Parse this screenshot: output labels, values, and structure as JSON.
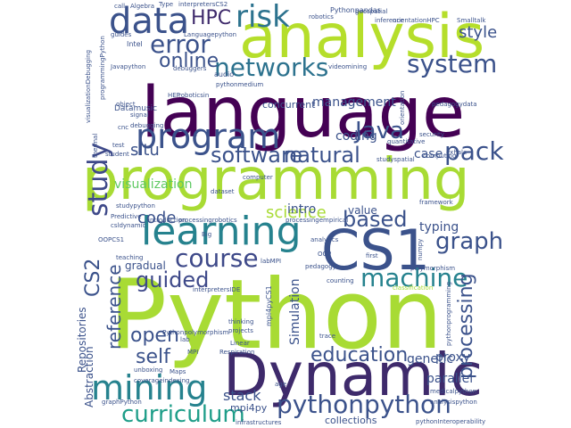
{
  "palette": {
    "dark_purple": "#440154",
    "indigo": "#3b528b",
    "teal": "#21918c",
    "green": "#5ec962",
    "lime": "#a8db34",
    "yellow": "#d8e219"
  },
  "words": [
    {
      "text": "language",
      "color": "#440154",
      "vertical": false
    },
    {
      "text": "programming",
      "color": "#a8db34",
      "vertical": false
    },
    {
      "text": "Python",
      "color": "#a8db34",
      "vertical": false
    },
    {
      "text": "analysis",
      "color": "#b5de2b",
      "vertical": false
    },
    {
      "text": "Dynamic",
      "color": "#3e2a6b",
      "vertical": false
    },
    {
      "text": "CS1",
      "color": "#3b528b",
      "vertical": false
    },
    {
      "text": "learning",
      "color": "#26828e",
      "vertical": false
    },
    {
      "text": "program",
      "color": "#3b528b",
      "vertical": false
    },
    {
      "text": "data",
      "color": "#3b528b",
      "vertical": false
    },
    {
      "text": "mining",
      "color": "#26828e",
      "vertical": false
    },
    {
      "text": "study",
      "color": "#3e4989",
      "vertical": true
    },
    {
      "text": "risk",
      "color": "#2c728e",
      "vertical": false
    },
    {
      "text": "error",
      "color": "#3b528b",
      "vertical": false
    },
    {
      "text": "networks",
      "color": "#2c728e",
      "vertical": false
    },
    {
      "text": "system",
      "color": "#3b528b",
      "vertical": false
    },
    {
      "text": "pythonpython",
      "color": "#3b528b",
      "vertical": false
    },
    {
      "text": "curriculum",
      "color": "#1f9e89",
      "vertical": false
    },
    {
      "text": "machine",
      "color": "#26828e",
      "vertical": false
    },
    {
      "text": "course",
      "color": "#3e4989",
      "vertical": false
    },
    {
      "text": "based",
      "color": "#3b528b",
      "vertical": false
    },
    {
      "text": "software",
      "color": "#3b528b",
      "vertical": false
    },
    {
      "text": "natural",
      "color": "#3b528b",
      "vertical": false
    },
    {
      "text": "Java",
      "color": "#3b528b",
      "vertical": false
    },
    {
      "text": "pack",
      "color": "#3b528b",
      "vertical": false
    },
    {
      "text": "graph",
      "color": "#3b528b",
      "vertical": false
    },
    {
      "text": "guided",
      "color": "#3e4989",
      "vertical": false
    },
    {
      "text": "online",
      "color": "#3b528b",
      "vertical": false
    },
    {
      "text": "HPC",
      "color": "#3e2a6b",
      "vertical": false
    },
    {
      "text": "education",
      "color": "#3b528b",
      "vertical": false
    },
    {
      "text": "open",
      "color": "#3b528b",
      "vertical": false
    },
    {
      "text": "self",
      "color": "#3b528b",
      "vertical": false
    },
    {
      "text": "style",
      "color": "#3b528b",
      "vertical": false
    },
    {
      "text": "code",
      "color": "#3b528b",
      "vertical": false
    },
    {
      "text": "science",
      "color": "#a8db34",
      "vertical": false
    },
    {
      "text": "processing",
      "color": "#3b528b",
      "vertical": true
    },
    {
      "text": "reference",
      "color": "#3b528b",
      "vertical": true
    },
    {
      "text": "CS2",
      "color": "#3b528b",
      "vertical": true
    },
    {
      "text": "stack",
      "color": "#3b528b",
      "vertical": false
    },
    {
      "text": "situ",
      "color": "#3b528b",
      "vertical": false
    },
    {
      "text": "visualization",
      "color": "#5ec962",
      "vertical": false
    },
    {
      "text": "management",
      "color": "#3b528b",
      "vertical": false
    },
    {
      "text": "coding",
      "color": "#3b528b",
      "vertical": false
    },
    {
      "text": "case",
      "color": "#3b528b",
      "vertical": false
    },
    {
      "text": "intro",
      "color": "#3b528b",
      "vertical": false
    },
    {
      "text": "value",
      "color": "#3b528b",
      "vertical": false
    },
    {
      "text": "typing",
      "color": "#3b528b",
      "vertical": false
    },
    {
      "text": "proxy",
      "color": "#3b528b",
      "vertical": false
    },
    {
      "text": "genetic",
      "color": "#3b528b",
      "vertical": false
    },
    {
      "text": "parallel",
      "color": "#3b528b",
      "vertical": false
    },
    {
      "text": "gradual",
      "color": "#3b528b",
      "vertical": false
    },
    {
      "text": "Simulation",
      "color": "#3b528b",
      "vertical": true
    },
    {
      "text": "Repositories",
      "color": "#3b528b",
      "vertical": true
    },
    {
      "text": "Abstraction",
      "color": "#3b528b",
      "vertical": true
    },
    {
      "text": "collections",
      "color": "#3b528b",
      "vertical": false
    },
    {
      "text": "concurrent",
      "color": "#3b528b",
      "vertical": false
    },
    {
      "text": "mpi4py",
      "color": "#3b528b",
      "vertical": false
    },
    {
      "text": "mpi4pyCS1",
      "color": "#3b528b",
      "vertical": true
    },
    {
      "text": "Languagepython",
      "color": "#3b528b",
      "vertical": false
    },
    {
      "text": "Datamusic",
      "color": "#3b528b",
      "vertical": false
    },
    {
      "text": "debugging",
      "color": "#3b528b",
      "vertical": false
    },
    {
      "text": "audio",
      "color": "#3b528b",
      "vertical": false
    },
    {
      "text": "Intel",
      "color": "#3b528b",
      "vertical": false
    },
    {
      "text": "Javapython",
      "color": "#3b528b",
      "vertical": false
    },
    {
      "text": "debuggers",
      "color": "#3b528b",
      "vertical": false
    },
    {
      "text": "pythonmedium",
      "color": "#3b528b",
      "vertical": false
    },
    {
      "text": "robotics",
      "color": "#3b528b",
      "vertical": false
    },
    {
      "text": "Pythonpandas",
      "color": "#3b528b",
      "vertical": false
    },
    {
      "text": "Smalltalk",
      "color": "#3b528b",
      "vertical": false
    },
    {
      "text": "interpretersCS2",
      "color": "#3b528b",
      "vertical": false
    },
    {
      "text": "Algebra",
      "color": "#3b528b",
      "vertical": false
    },
    {
      "text": "Type",
      "color": "#3b528b",
      "vertical": false
    },
    {
      "text": "call",
      "color": "#3b528b",
      "vertical": false
    },
    {
      "text": "object",
      "color": "#3b528b",
      "vertical": false
    },
    {
      "text": "signal",
      "color": "#3b528b",
      "vertical": false
    },
    {
      "text": "pedagogydata",
      "color": "#3b528b",
      "vertical": false
    },
    {
      "text": "videomining",
      "color": "#3b528b",
      "vertical": false
    },
    {
      "text": "cnc",
      "color": "#3b528b",
      "vertical": false
    },
    {
      "text": "test",
      "color": "#3b528b",
      "vertical": false
    },
    {
      "text": "security",
      "color": "#3b528b",
      "vertical": false
    },
    {
      "text": "quantitative",
      "color": "#3b528b",
      "vertical": false
    },
    {
      "text": "computing",
      "color": "#3b528b",
      "vertical": false
    },
    {
      "text": "studyspatial",
      "color": "#3b528b",
      "vertical": false
    },
    {
      "text": "computer",
      "color": "#3b528b",
      "vertical": false
    },
    {
      "text": "dataset",
      "color": "#3b528b",
      "vertical": false
    },
    {
      "text": "Predictive",
      "color": "#3b528b",
      "vertical": false
    },
    {
      "text": "csldynamic",
      "color": "#3b528b",
      "vertical": false
    },
    {
      "text": "OOPCS1",
      "color": "#3b528b",
      "vertical": false
    },
    {
      "text": "introduction",
      "color": "#3b528b",
      "vertical": false
    },
    {
      "text": "processingrobotics",
      "color": "#3b528b",
      "vertical": false
    },
    {
      "text": "processingempirical",
      "color": "#3b528b",
      "vertical": false
    },
    {
      "text": "analytics",
      "color": "#3b528b",
      "vertical": false
    },
    {
      "text": "Big",
      "color": "#3b528b",
      "vertical": false
    },
    {
      "text": "teaching",
      "color": "#3b528b",
      "vertical": false
    },
    {
      "text": "labMPI",
      "color": "#3b528b",
      "vertical": false
    },
    {
      "text": "pedagogy",
      "color": "#3b528b",
      "vertical": false
    },
    {
      "text": "counting",
      "color": "#3b528b",
      "vertical": false
    },
    {
      "text": "first",
      "color": "#3b528b",
      "vertical": false
    },
    {
      "text": "interpretersIDE",
      "color": "#3b528b",
      "vertical": false
    },
    {
      "text": "polymorphism",
      "color": "#3b528b",
      "vertical": false
    },
    {
      "text": "thinking",
      "color": "#3b528b",
      "vertical": false
    },
    {
      "text": "projects",
      "color": "#3b528b",
      "vertical": false
    },
    {
      "text": "Pythonpolymorphism",
      "color": "#3b528b",
      "vertical": false
    },
    {
      "text": "Linear",
      "color": "#3b528b",
      "vertical": false
    },
    {
      "text": "Respiration",
      "color": "#3b528b",
      "vertical": false
    },
    {
      "text": "MPI",
      "color": "#3b528b",
      "vertical": false
    },
    {
      "text": "lab",
      "color": "#3b528b",
      "vertical": false
    },
    {
      "text": "trace",
      "color": "#3b528b",
      "vertical": false
    },
    {
      "text": "classification",
      "color": "#a8db34",
      "vertical": false
    },
    {
      "text": "unboxing",
      "color": "#3b528b",
      "vertical": false
    },
    {
      "text": "Maps",
      "color": "#3b528b",
      "vertical": false
    },
    {
      "text": "coverageindexing",
      "color": "#3b528b",
      "vertical": false
    },
    {
      "text": "graphPython",
      "color": "#3b528b",
      "vertical": false
    },
    {
      "text": "age",
      "color": "#3b528b",
      "vertical": false
    },
    {
      "text": "medicalpython",
      "color": "#3b528b",
      "vertical": false
    },
    {
      "text": "analysispython",
      "color": "#3b528b",
      "vertical": false
    },
    {
      "text": "pythonInteroperability",
      "color": "#3b528b",
      "vertical": false
    },
    {
      "text": "infrastructures",
      "color": "#3b528b",
      "vertical": false
    },
    {
      "text": "pythonprogramming",
      "color": "#3b528b",
      "vertical": true
    },
    {
      "text": "orientation",
      "color": "#3b528b",
      "vertical": true
    },
    {
      "text": "framework",
      "color": "#3b528b",
      "vertical": false
    },
    {
      "text": "numpy",
      "color": "#3b528b",
      "vertical": true
    },
    {
      "text": "exhale",
      "color": "#3b528b",
      "vertical": false
    },
    {
      "text": "geospatial",
      "color": "#3b528b",
      "vertical": false
    },
    {
      "text": "inference",
      "color": "#3b528b",
      "vertical": false
    },
    {
      "text": "orientationHPC",
      "color": "#3b528b",
      "vertical": false
    },
    {
      "text": "guides",
      "color": "#3b528b",
      "vertical": false
    },
    {
      "text": "programmingPython",
      "color": "#3b528b",
      "vertical": true
    },
    {
      "text": "visualizationDebugging",
      "color": "#3b528b",
      "vertical": true
    },
    {
      "text": "HEP",
      "color": "#3b528b",
      "vertical": false
    },
    {
      "text": "roboticsin",
      "color": "#3b528b",
      "vertical": false
    },
    {
      "text": "student",
      "color": "#3b528b",
      "vertical": false
    },
    {
      "text": "thermal",
      "color": "#3b528b",
      "vertical": true
    },
    {
      "text": "studypython",
      "color": "#3b528b",
      "vertical": false
    },
    {
      "text": "OOP",
      "color": "#3b528b",
      "vertical": false
    }
  ]
}
